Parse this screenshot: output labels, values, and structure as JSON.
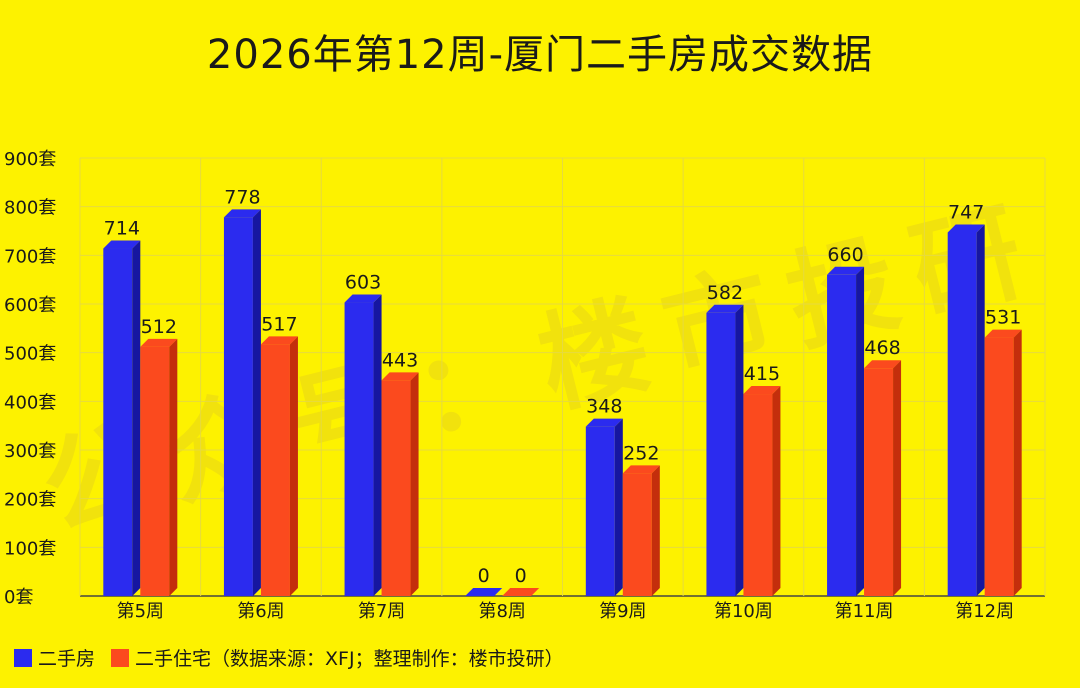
{
  "title": "2026年第12周-厦门二手房成交数据",
  "watermark": "公众号：楼市投研",
  "legend_note": "（数据来源：XFJ；整理制作：楼市投研）",
  "colors": {
    "series1": "#2b2bef",
    "series1_side": "#1616a0",
    "series2": "#fb4a1e",
    "series2_side": "#c42e0c",
    "background": "#fdf200"
  },
  "chart_data": {
    "type": "bar",
    "categories": [
      "第5周",
      "第6周",
      "第7周",
      "第8周",
      "第9周",
      "第10周",
      "第11周",
      "第12周"
    ],
    "series": [
      {
        "name": "二手房",
        "values": [
          714,
          778,
          603,
          0,
          348,
          582,
          660,
          747
        ]
      },
      {
        "name": "二手住宅",
        "values": [
          512,
          517,
          443,
          0,
          252,
          415,
          468,
          531
        ]
      }
    ],
    "yticks": [
      "0套",
      "100套",
      "200套",
      "300套",
      "400套",
      "500套",
      "600套",
      "700套",
      "800套",
      "900套"
    ],
    "ylim": [
      0,
      900
    ],
    "grid": true,
    "legend_position": "bottom-left"
  }
}
